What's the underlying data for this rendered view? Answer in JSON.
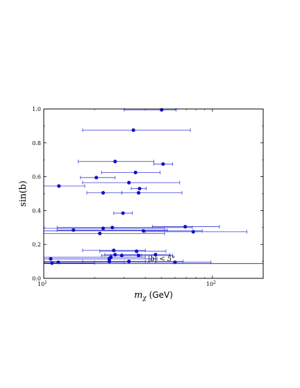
{
  "chart_data": {
    "type": "scatter",
    "x_scale": "log",
    "xlim": [
      10,
      200
    ],
    "ylim": [
      0.0,
      1.0
    ],
    "xlabel_math": "m",
    "xlabel_sub": "χ",
    "xlabel_unit": "(GeV)",
    "ylabel": "sin(b)",
    "y_ticks": [
      "0.0",
      "0.2",
      "0.4",
      "0.6",
      "0.8",
      "1.0"
    ],
    "x_ticks": [
      {
        "value": 10,
        "base": "10",
        "exp": "1"
      },
      {
        "value": 100,
        "base": "10",
        "exp": "2"
      }
    ],
    "reference_line": {
      "y": 0.087,
      "label": "|b| < 5°"
    },
    "colors": {
      "point": "#1010c8",
      "errorbar": "#3a3ad8",
      "axis": "#000000"
    },
    "grid": false,
    "legend": "none",
    "points": [
      {
        "x": 50,
        "y": 0.995,
        "xlo": 30,
        "xhi": 61
      },
      {
        "x": 34,
        "y": 0.875,
        "xlo": 17,
        "xhi": 74
      },
      {
        "x": 51,
        "y": 0.675,
        "xlo": 45,
        "xhi": 58
      },
      {
        "x": 26.5,
        "y": 0.69,
        "xlo": 16,
        "xhi": 45
      },
      {
        "x": 35,
        "y": 0.625,
        "xlo": 22,
        "xhi": 49
      },
      {
        "x": 20.5,
        "y": 0.595,
        "xlo": 16.5,
        "xhi": 26.5
      },
      {
        "x": 32,
        "y": 0.565,
        "xlo": 17,
        "xhi": 64
      },
      {
        "x": 12.3,
        "y": 0.545,
        "xlo": 10,
        "xhi": 17.5
      },
      {
        "x": 37,
        "y": 0.53,
        "xlo": 33,
        "xhi": 40.5
      },
      {
        "x": 22.5,
        "y": 0.505,
        "xlo": 18,
        "xhi": 29
      },
      {
        "x": 36.5,
        "y": 0.505,
        "xlo": 29,
        "xhi": 66
      },
      {
        "x": 29.5,
        "y": 0.385,
        "xlo": 26,
        "xhi": 33.5
      },
      {
        "x": 69,
        "y": 0.305,
        "xlo": 44,
        "xhi": 110
      },
      {
        "x": 25.5,
        "y": 0.3,
        "xlo": 12,
        "xhi": 76
      },
      {
        "x": 22.5,
        "y": 0.295,
        "xlo": 10,
        "xhi": 52
      },
      {
        "x": 15,
        "y": 0.285,
        "xlo": 12,
        "xhi": 54
      },
      {
        "x": 39,
        "y": 0.28,
        "xlo": 10,
        "xhi": 87
      },
      {
        "x": 77,
        "y": 0.275,
        "xlo": 40,
        "xhi": 160
      },
      {
        "x": 21.5,
        "y": 0.265,
        "xlo": 10,
        "xhi": 52
      },
      {
        "x": 26,
        "y": 0.165,
        "xlo": 17,
        "xhi": 40
      },
      {
        "x": 35.5,
        "y": 0.16,
        "xlo": 21.5,
        "xhi": 53
      },
      {
        "x": 26.5,
        "y": 0.14,
        "xlo": 23,
        "xhi": 36
      },
      {
        "x": 29,
        "y": 0.135,
        "xlo": 22,
        "xhi": 38
      },
      {
        "x": 36.5,
        "y": 0.135,
        "xlo": 25,
        "xhi": 58
      },
      {
        "x": 46,
        "y": 0.14,
        "xlo": 29,
        "xhi": 56
      },
      {
        "x": 25,
        "y": 0.125,
        "xlo": 10,
        "xhi": 40
      },
      {
        "x": 24.5,
        "y": 0.115,
        "xlo": 10,
        "xhi": 47
      },
      {
        "x": 11,
        "y": 0.115,
        "xlo": 10,
        "xhi": 24
      },
      {
        "x": 24.5,
        "y": 0.1,
        "xlo": 17,
        "xhi": 40
      },
      {
        "x": 32,
        "y": 0.1,
        "xlo": 10,
        "xhi": 67
      },
      {
        "x": 12.2,
        "y": 0.095,
        "xlo": 10,
        "xhi": 30
      },
      {
        "x": 11.2,
        "y": 0.09,
        "xlo": 10,
        "xhi": 20
      },
      {
        "x": 60,
        "y": 0.095,
        "xlo": 20,
        "xhi": 98
      }
    ]
  }
}
